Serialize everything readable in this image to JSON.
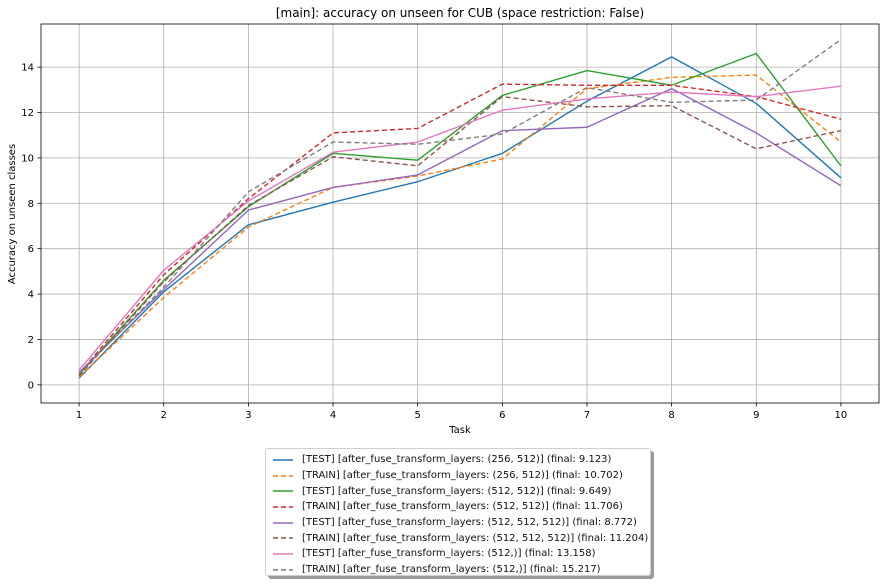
{
  "chart_data": {
    "type": "line",
    "title": "[main]: accuracy on unseen for CUB (space restriction: False)",
    "xlabel": "Task",
    "ylabel": "Accuracy on unseen classes",
    "x": [
      1,
      2,
      3,
      4,
      5,
      6,
      7,
      8,
      9,
      10
    ],
    "xticks": [
      "1",
      "2",
      "3",
      "4",
      "5",
      "6",
      "7",
      "8",
      "9",
      "10"
    ],
    "yticks": [
      "0",
      "2",
      "4",
      "6",
      "8",
      "10",
      "12",
      "14"
    ],
    "xlim": [
      0.55,
      10.45
    ],
    "ylim": [
      -0.8,
      15.9
    ],
    "grid": true,
    "legend_position": "below",
    "series": [
      {
        "name": "[TEST] [after_fuse_transform_layers: (256, 512)] (final:  9.123)",
        "color": "#1f77b4",
        "dash": false,
        "values": [
          0.3,
          4.1,
          7.05,
          8.05,
          8.95,
          10.2,
          12.5,
          14.45,
          12.4,
          9.123
        ]
      },
      {
        "name": "[TRAIN] [after_fuse_transform_layers: (256, 512)] (final:  10.702)",
        "color": "#ff7f0e",
        "dash": true,
        "values": [
          0.35,
          3.85,
          6.95,
          8.7,
          9.2,
          9.95,
          13.05,
          13.55,
          13.65,
          10.702
        ]
      },
      {
        "name": "[TEST] [after_fuse_transform_layers: (512, 512)] (final:  9.649)",
        "color": "#2ca02c",
        "dash": false,
        "values": [
          0.45,
          4.6,
          7.85,
          10.2,
          9.9,
          12.75,
          13.85,
          13.2,
          14.6,
          9.649
        ]
      },
      {
        "name": "[TRAIN] [after_fuse_transform_layers: (512, 512)] (final:  11.706)",
        "color": "#d62728",
        "dash": true,
        "values": [
          0.5,
          4.85,
          8.2,
          11.1,
          11.3,
          13.25,
          13.2,
          13.2,
          12.7,
          11.706
        ]
      },
      {
        "name": "[TEST] [after_fuse_transform_layers: (512, 512, 512)] (final:  8.772)",
        "color": "#9467bd",
        "dash": false,
        "values": [
          0.55,
          4.2,
          7.7,
          8.7,
          9.25,
          11.2,
          11.35,
          13.05,
          11.1,
          8.772
        ]
      },
      {
        "name": "[TRAIN] [after_fuse_transform_layers: (512, 512, 512)] (final:  11.204)",
        "color": "#8c564b",
        "dash": true,
        "values": [
          0.4,
          4.55,
          7.9,
          10.05,
          9.65,
          12.7,
          12.25,
          12.3,
          10.4,
          11.204
        ]
      },
      {
        "name": "[TEST] [after_fuse_transform_layers: (512,)] (final:  13.158)",
        "color": "#e377c2",
        "dash": false,
        "values": [
          0.65,
          5.05,
          8.1,
          10.25,
          10.7,
          12.1,
          12.6,
          12.9,
          12.7,
          13.158
        ]
      },
      {
        "name": "[TRAIN] [after_fuse_transform_layers: (512,)] (final:  15.217)",
        "color": "#7f7f7f",
        "dash": true,
        "values": [
          0.5,
          4.3,
          8.5,
          10.7,
          10.6,
          11.05,
          13.1,
          12.45,
          12.55,
          15.217
        ]
      }
    ]
  }
}
